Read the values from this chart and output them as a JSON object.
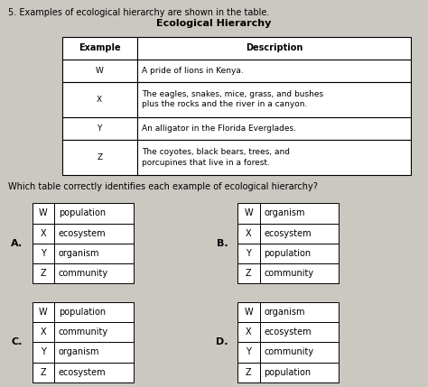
{
  "bg_color": "#cbc8c2",
  "title_line": "5. Examples of ecological hierarchy are shown in the table.",
  "main_table_title": "Ecological Hierarchy",
  "main_table_headers": [
    "Example",
    "Description"
  ],
  "main_table_rows": [
    [
      "W",
      "A pride of lions in Kenya."
    ],
    [
      "X",
      "The eagles, snakes, mice, grass, and bushes\nplus the rocks and the river in a canyon."
    ],
    [
      "Y",
      "An alligator in the Florida Everglades."
    ],
    [
      "Z",
      "The coyotes, black bears, trees, and\nporcupines that live in a forest."
    ]
  ],
  "question": "Which table correctly identifies each example of ecological hierarchy?",
  "options": {
    "A": [
      [
        "W",
        "population"
      ],
      [
        "X",
        "ecosystem"
      ],
      [
        "Y",
        "organism"
      ],
      [
        "Z",
        "community"
      ]
    ],
    "B": [
      [
        "W",
        "organism"
      ],
      [
        "X",
        "ecosystem"
      ],
      [
        "Y",
        "population"
      ],
      [
        "Z",
        "community"
      ]
    ],
    "C": [
      [
        "W",
        "population"
      ],
      [
        "X",
        "community"
      ],
      [
        "Y",
        "organism"
      ],
      [
        "Z",
        "ecosystem"
      ]
    ],
    "D": [
      [
        "W",
        "organism"
      ],
      [
        "X",
        "ecosystem"
      ],
      [
        "Y",
        "community"
      ],
      [
        "Z",
        "population"
      ]
    ]
  },
  "title_fontsize": 7,
  "table_title_fontsize": 8,
  "header_fontsize": 7,
  "data_fontsize": 6.5,
  "question_fontsize": 7,
  "option_label_fontsize": 8,
  "option_text_fontsize": 7
}
